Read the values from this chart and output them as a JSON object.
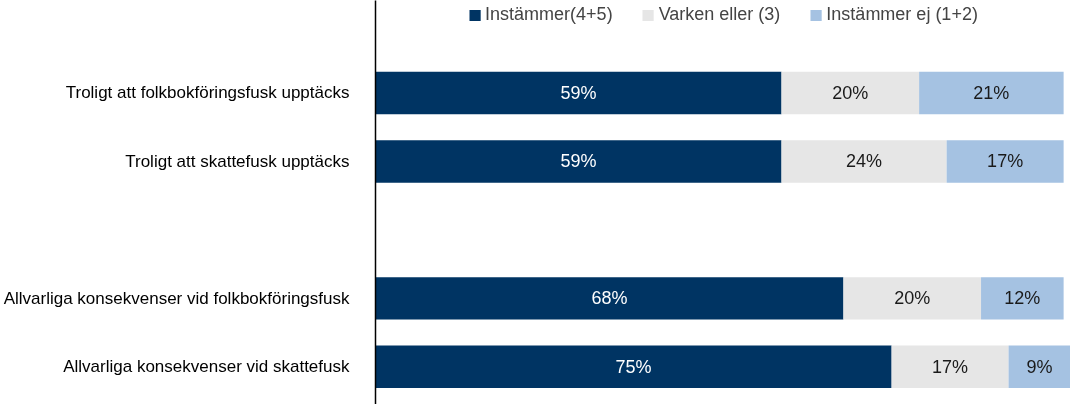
{
  "chart_data": {
    "type": "bar",
    "orientation": "horizontal",
    "stacked": true,
    "categories": [
      "Troligt att folkbokföringsfusk upptäcks",
      "Troligt att skattefusk upptäcks",
      null,
      "Allvarliga konsekvenser vid folkbokföringsfusk",
      "Allvarliga konsekvenser vid skattefusk"
    ],
    "series": [
      {
        "name": "Instämmer(4+5)",
        "color": "#003463",
        "values": [
          59,
          59,
          null,
          68,
          75
        ],
        "value_labels": [
          "59%",
          "59%",
          null,
          "68%",
          "75%"
        ]
      },
      {
        "name": "Varken eller (3)",
        "color": "#e6e6e6",
        "values": [
          20,
          24,
          null,
          20,
          17
        ],
        "value_labels": [
          "20%",
          "24%",
          null,
          "20%",
          "17%"
        ]
      },
      {
        "name": "Instämmer ej (1+2)",
        "color": "#a5c2e2",
        "values": [
          21,
          17,
          null,
          12,
          9
        ],
        "value_labels": [
          "21%",
          "17%",
          null,
          "12%",
          "9%"
        ]
      }
    ],
    "xlim": [
      0,
      101
    ],
    "tick_labels": "y",
    "grid": false,
    "legend": "top"
  }
}
